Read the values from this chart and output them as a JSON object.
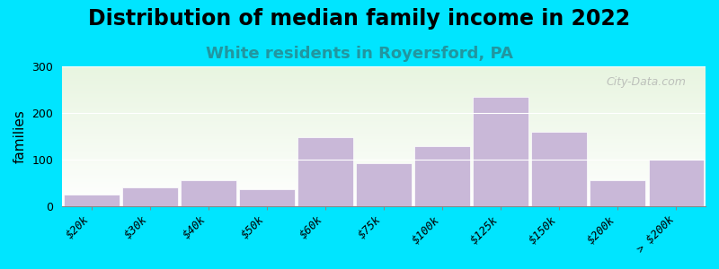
{
  "title": "Distribution of median family income in 2022",
  "subtitle": "White residents in Royersford, PA",
  "ylabel": "families",
  "categories": [
    "$20k",
    "$30k",
    "$40k",
    "$50k",
    "$60k",
    "$75k",
    "$100k",
    "$125k",
    "$150k",
    "$200k",
    "> $200k"
  ],
  "values": [
    25,
    40,
    55,
    35,
    148,
    92,
    128,
    235,
    160,
    55,
    100
  ],
  "bar_color": "#c9b8d8",
  "background_outer": "#00e5ff",
  "plot_bg_top": "#e8f5e0",
  "plot_bg_bottom": "#ffffff",
  "title_fontsize": 17,
  "subtitle_fontsize": 13,
  "subtitle_color": "#2196a0",
  "ylabel_fontsize": 11,
  "tick_fontsize": 9,
  "ylim": [
    0,
    300
  ],
  "yticks": [
    0,
    100,
    200,
    300
  ],
  "watermark": "City-Data.com"
}
